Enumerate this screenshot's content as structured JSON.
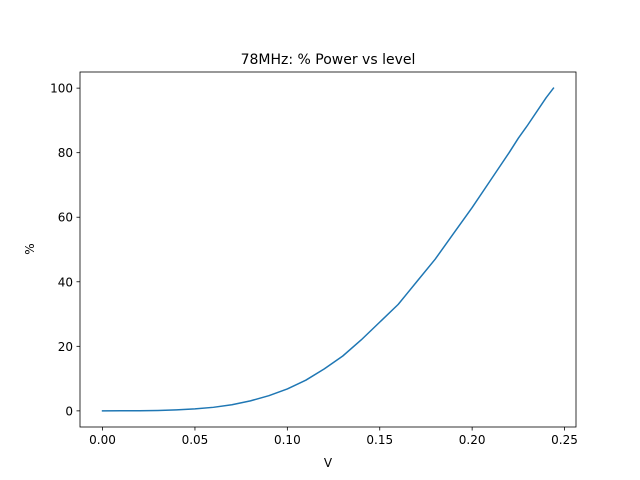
{
  "chart_data": {
    "type": "line",
    "title": "78MHz: % Power vs level",
    "xlabel": "V",
    "ylabel": "%",
    "xlim": [
      -0.0122,
      0.2562
    ],
    "ylim": [
      -5,
      105
    ],
    "xticks": [
      0.0,
      0.05,
      0.1,
      0.15,
      0.2,
      0.25
    ],
    "xtick_labels": [
      "0.00",
      "0.05",
      "0.10",
      "0.15",
      "0.20",
      "0.25"
    ],
    "yticks": [
      0,
      20,
      40,
      60,
      80,
      100
    ],
    "ytick_labels": [
      "0",
      "20",
      "40",
      "60",
      "80",
      "100"
    ],
    "grid": false,
    "series": [
      {
        "color": "#1f77b4",
        "x": [
          0.0,
          0.01,
          0.02,
          0.03,
          0.04,
          0.05,
          0.06,
          0.07,
          0.08,
          0.09,
          0.1,
          0.11,
          0.12,
          0.13,
          0.14,
          0.15,
          0.16,
          0.165,
          0.17,
          0.18,
          0.19,
          0.2,
          0.21,
          0.22,
          0.225,
          0.23,
          0.24,
          0.244
        ],
        "y": [
          0.0,
          0.02,
          0.05,
          0.12,
          0.3,
          0.6,
          1.1,
          1.9,
          3.1,
          4.7,
          6.8,
          9.5,
          13.0,
          17.0,
          22.0,
          27.5,
          33.0,
          36.5,
          40.0,
          47.0,
          55.0,
          63.0,
          71.5,
          80.0,
          84.5,
          88.5,
          97.0,
          100.0
        ]
      }
    ]
  }
}
